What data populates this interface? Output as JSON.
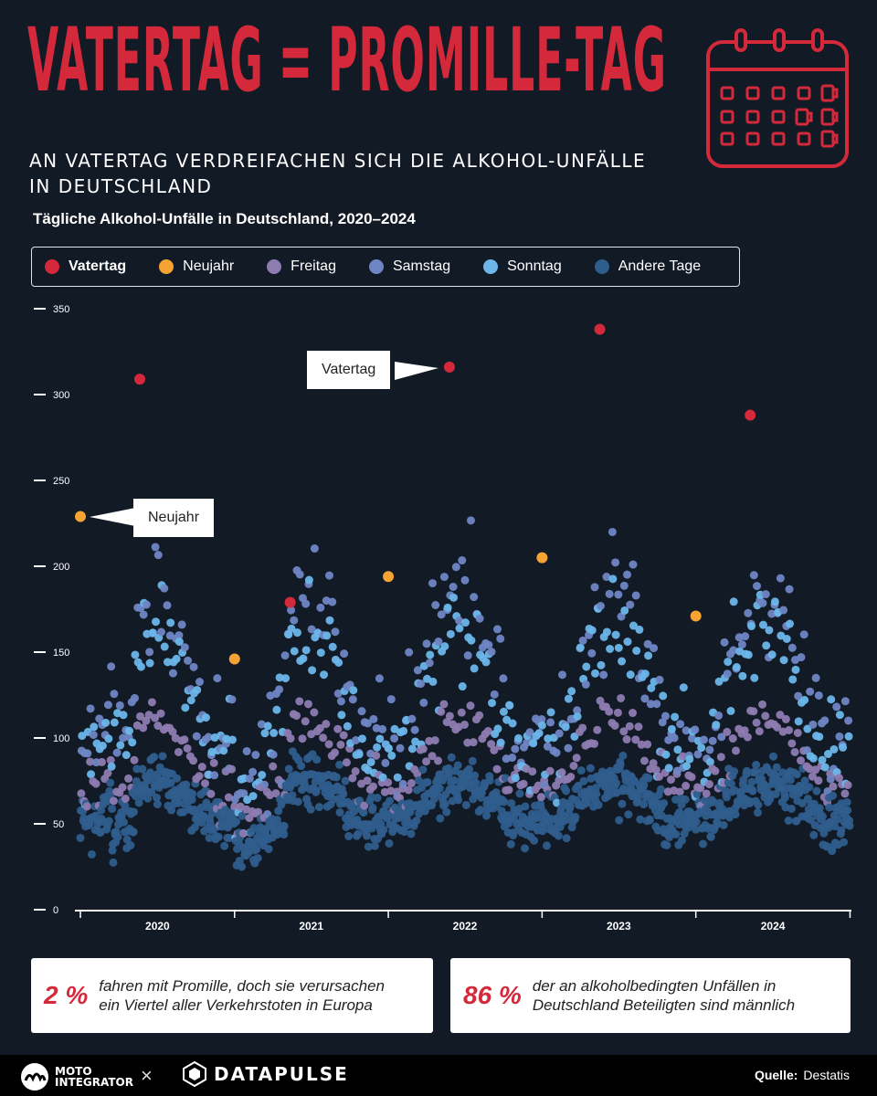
{
  "header": {
    "title": "VATERTAG = PROMILLE-TAG",
    "subtitle_line1": "AN VATERTAG VERDREIFACHEN SICH DIE ALKOHOL-UNFÄLLE",
    "subtitle_line2": "IN DEUTSCHLAND"
  },
  "icon": "calendar-with-beer-mugs-icon",
  "chart_data": {
    "type": "scatter",
    "title": "Tägliche Alkohol-Unfälle in Deutschland, 2020–2024",
    "xlabel": "",
    "ylabel": "",
    "ylim": [
      0,
      350
    ],
    "yticks": [
      "0",
      "50",
      "100",
      "150",
      "200",
      "250",
      "300",
      "350"
    ],
    "xticks": [
      "2020",
      "2021",
      "2022",
      "2023",
      "2024"
    ],
    "x_range": [
      "2020-01-01",
      "2024-12-31"
    ],
    "grid": false,
    "legend_position": "top",
    "series": [
      {
        "name": "Vatertag",
        "color": "#d4293a",
        "x": [
          "2020-05-21",
          "2021-05-13",
          "2022-05-26",
          "2023-05-18",
          "2024-05-09"
        ],
        "y": [
          309,
          179,
          316,
          338,
          288
        ]
      },
      {
        "name": "Neujahr",
        "color": "#f5a332",
        "x": [
          "2020-01-01",
          "2021-01-01",
          "2022-01-01",
          "2023-01-01",
          "2024-01-01"
        ],
        "y": [
          229,
          146,
          194,
          205,
          171
        ]
      },
      {
        "name": "Freitag",
        "color": "#8e7bb0"
      },
      {
        "name": "Samstag",
        "color": "#6f86c4"
      },
      {
        "name": "Sonntag",
        "color": "#6cb6ea"
      },
      {
        "name": "Andere Tage",
        "color": "#2f5d8c"
      }
    ],
    "annotations": [
      "Vatertag",
      "Neujahr"
    ]
  },
  "stats": [
    {
      "value": "2 %",
      "text_line1": "fahren mit Promille, doch sie verursachen",
      "text_line2": "ein Viertel aller Verkehrstoten in Europa"
    },
    {
      "value": "86 %",
      "text_line1": "der an alkoholbedingten Unfällen in",
      "text_line2": "Deutschland Beteiligten sind männlich"
    }
  ],
  "footer": {
    "brand1_line1": "MOTO",
    "brand1_line2": "INTEGRATOR",
    "separator": "×",
    "brand2": "DATAPULSE",
    "source_label": "Quelle:",
    "source_value": "Destatis"
  }
}
